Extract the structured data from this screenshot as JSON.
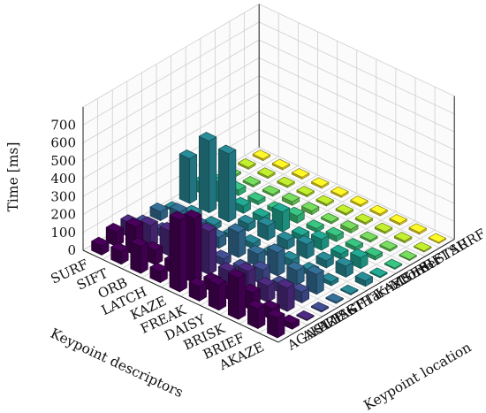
{
  "chart_data": {
    "type": "bar3d",
    "zlabel": "Time [ms]",
    "xlabel": "Keypoint descriptors",
    "ylabel": "Keypoint location",
    "zticks": [
      0,
      100,
      200,
      300,
      400,
      500,
      600,
      700
    ],
    "zlim": [
      0,
      800
    ],
    "descriptors": [
      "AKAZE",
      "BRIEF",
      "BRISK",
      "DAISY",
      "FREAK",
      "KAZE",
      "LATCH",
      "ORB",
      "SIFT",
      "SURF"
    ],
    "detectors": [
      "AGAST",
      "AKAZE",
      "BRISK",
      "FAST",
      "GFTT",
      "HarrisCorner",
      "KAZE",
      "MSER",
      "ORB",
      "SIFT",
      "STAR",
      "SURF"
    ],
    "colormap": [
      "#440154",
      "#482878",
      "#3e4989",
      "#31688e",
      "#26828e",
      "#1f9e89",
      "#35b779",
      "#6ece58",
      "#b5de2b",
      "#fde725"
    ],
    "values": [
      [
        110,
        30,
        0,
        0,
        0,
        0,
        30,
        0,
        0,
        0,
        0,
        0
      ],
      [
        110,
        60,
        130,
        60,
        110,
        20,
        60,
        60,
        20,
        10,
        10,
        10
      ],
      [
        230,
        100,
        90,
        50,
        80,
        30,
        40,
        30,
        20,
        10,
        10,
        10
      ],
      [
        140,
        70,
        120,
        80,
        130,
        40,
        80,
        60,
        30,
        20,
        10,
        10
      ],
      [
        80,
        60,
        70,
        40,
        70,
        20,
        50,
        30,
        20,
        10,
        10,
        10
      ],
      [
        400,
        360,
        240,
        40,
        140,
        30,
        80,
        110,
        40,
        20,
        10,
        10
      ],
      [
        60,
        60,
        70,
        40,
        60,
        20,
        40,
        30,
        20,
        20,
        10,
        10
      ],
      [
        150,
        80,
        140,
        60,
        80,
        30,
        380,
        40,
        20,
        10,
        10,
        10
      ],
      [
        70,
        160,
        120,
        40,
        100,
        40,
        400,
        110,
        30,
        10,
        10,
        10
      ],
      [
        50,
        80,
        80,
        30,
        50,
        10,
        250,
        60,
        20,
        10,
        10,
        10
      ]
    ]
  }
}
